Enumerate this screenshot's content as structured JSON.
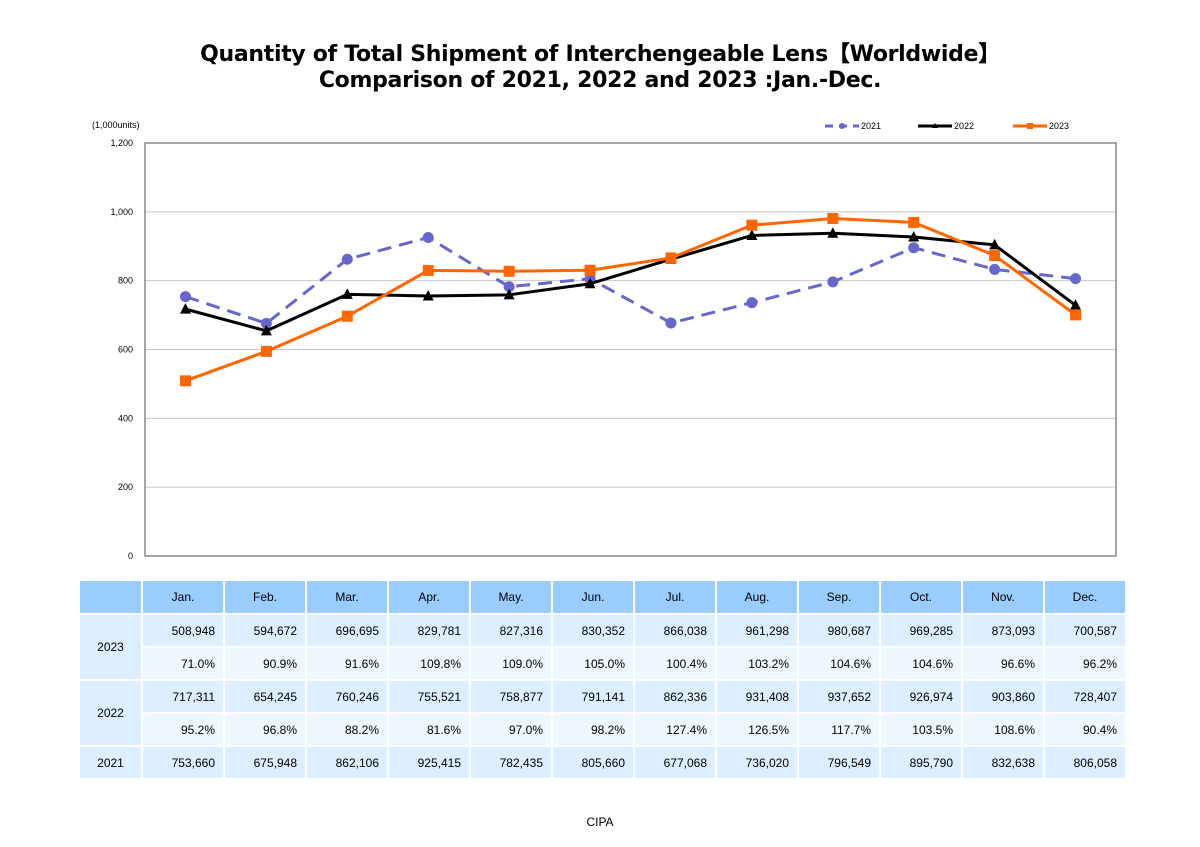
{
  "title_line1": "Quantity of Total Shipment of Interchengeable Lens【Worldwide】",
  "title_line2": "Comparison of 2021, 2022 and 2023 :Jan.-Dec.",
  "source": "CIPA",
  "chart_data": {
    "type": "line",
    "title": "Quantity of Total Shipment of Interchengeable Lens【Worldwide】 Comparison of 2021, 2022 and 2023 :Jan.-Dec.",
    "unit_label": "(1,000units)",
    "xlabel": "",
    "ylabel": "(1,000units)",
    "ylim": [
      0,
      1200
    ],
    "yticks": [
      0,
      200,
      400,
      600,
      800,
      1000,
      1200
    ],
    "ytick_labels": [
      "0",
      "200",
      "400",
      "600",
      "800",
      "1,000",
      "1,200"
    ],
    "grid": true,
    "legend_position": "top-right",
    "categories": [
      "Jan.",
      "Feb.",
      "Mar.",
      "Apr.",
      "May.",
      "Jun.",
      "Jul.",
      "Aug.",
      "Sep.",
      "Oct.",
      "Nov.",
      "Dec."
    ],
    "series": [
      {
        "name": "2021",
        "color": "#6666cc",
        "line_style": "dashed",
        "marker": "circle",
        "values": [
          753.66,
          675.948,
          862.106,
          925.415,
          782.435,
          805.66,
          677.068,
          736.02,
          796.549,
          895.79,
          832.638,
          806.058
        ]
      },
      {
        "name": "2022",
        "color": "#000000",
        "line_style": "solid",
        "marker": "triangle",
        "values": [
          717.311,
          654.245,
          760.246,
          755.521,
          758.877,
          791.141,
          862.336,
          931.408,
          937.652,
          926.974,
          903.86,
          728.407
        ]
      },
      {
        "name": "2023",
        "color": "#ff6600",
        "line_style": "solid",
        "marker": "square",
        "values": [
          508.948,
          594.672,
          696.695,
          829.781,
          827.316,
          830.352,
          866.038,
          961.298,
          980.687,
          969.285,
          873.093,
          700.587
        ]
      }
    ]
  },
  "table": {
    "months": [
      "Jan.",
      "Feb.",
      "Mar.",
      "Apr.",
      "May.",
      "Jun.",
      "Jul.",
      "Aug.",
      "Sep.",
      "Oct.",
      "Nov.",
      "Dec."
    ],
    "rows": [
      {
        "year": "2023",
        "values": [
          "508,948",
          "594,672",
          "696,695",
          "829,781",
          "827,316",
          "830,352",
          "866,038",
          "961,298",
          "980,687",
          "969,285",
          "873,093",
          "700,587"
        ],
        "pct": [
          "71.0%",
          "90.9%",
          "91.6%",
          "109.8%",
          "109.0%",
          "105.0%",
          "100.4%",
          "103.2%",
          "104.6%",
          "104.6%",
          "96.6%",
          "96.2%"
        ]
      },
      {
        "year": "2022",
        "values": [
          "717,311",
          "654,245",
          "760,246",
          "755,521",
          "758,877",
          "791,141",
          "862,336",
          "931,408",
          "937,652",
          "926,974",
          "903,860",
          "728,407"
        ],
        "pct": [
          "95.2%",
          "96.8%",
          "88.2%",
          "81.6%",
          "97.0%",
          "98.2%",
          "127.4%",
          "126.5%",
          "117.7%",
          "103.5%",
          "108.6%",
          "90.4%"
        ]
      },
      {
        "year": "2021",
        "values": [
          "753,660",
          "675,948",
          "862,106",
          "925,415",
          "782,435",
          "805,660",
          "677,068",
          "736,020",
          "796,549",
          "895,790",
          "832,638",
          "806,058"
        ]
      }
    ]
  }
}
